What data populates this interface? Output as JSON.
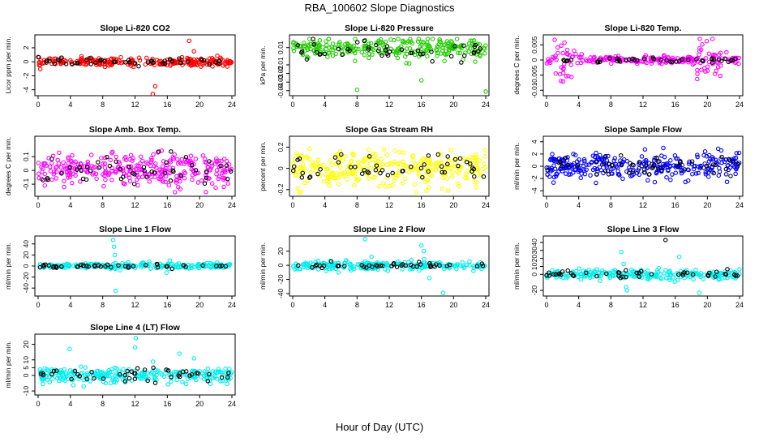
{
  "figure": {
    "title": "RBA_100602  Slope Diagnostics",
    "xlabel": "Hour of Day (UTC)"
  },
  "colors": {
    "red": "#ff0000",
    "green": "#22cc00",
    "magenta": "#ff00ff",
    "yellow": "#ffff00",
    "blue": "#0000ff",
    "cyan": "#00eeee",
    "overlay": "#000000"
  },
  "chart_data": [
    {
      "type": "scatter",
      "title": "Slope Li-820 CO2",
      "ylabel": "Licor ppm per min.",
      "color": "red",
      "xlim": [
        0,
        24
      ],
      "ylim": [
        -4.5,
        3.5
      ],
      "xticks": [
        0,
        4,
        8,
        12,
        16,
        20,
        24
      ],
      "yticks": [
        -4,
        -2,
        0,
        2
      ],
      "grid": false,
      "series": [
        {
          "noise": 0.3,
          "n": 240,
          "outliers": [
            [
              14.5,
              -3.5
            ],
            [
              14.2,
              -4.6
            ],
            [
              18.7,
              3.0
            ],
            [
              19.3,
              1.5
            ]
          ]
        },
        {
          "noise": 0.25,
          "n": 45
        }
      ]
    },
    {
      "type": "scatter",
      "title": "Slope Li-820 Pressure",
      "ylabel": "kPa per min.",
      "color": "green",
      "xlim": [
        0,
        24
      ],
      "ylim": [
        -0.043,
        0.022
      ],
      "xticks": [
        0,
        4,
        8,
        12,
        16,
        20,
        24
      ],
      "yticks": [
        -0.04,
        -0.03,
        -0.02,
        -0.01,
        0.01
      ],
      "grid": false,
      "series": [
        {
          "noise": 0.006,
          "n": 260,
          "center": 0.009,
          "outliers": [
            [
              8.0,
              -0.039
            ],
            [
              16.0,
              -0.028
            ],
            [
              24.0,
              -0.041
            ]
          ]
        },
        {
          "noise": 0.005,
          "n": 45,
          "center": 0.006
        }
      ]
    },
    {
      "type": "scatter",
      "title": "Slope Li-820 Temp.",
      "ylabel": "degrees C per min.",
      "color": "magenta",
      "xlim": [
        0,
        24
      ],
      "ylim": [
        -0.011,
        0.0075
      ],
      "xticks": [
        0,
        4,
        8,
        12,
        16,
        20,
        24
      ],
      "yticks": [
        -0.01,
        -0.005,
        0.0,
        0.005
      ],
      "grid": false,
      "series": [
        {
          "noise": 0.0006,
          "n": 240,
          "burst": [
            [
              0.5,
              4.0,
              0.004
            ],
            [
              18.5,
              22.5,
              0.003
            ]
          ]
        },
        {
          "noise": 0.0005,
          "n": 45
        }
      ]
    },
    {
      "type": "scatter",
      "title": "Slope Amb. Box Temp.",
      "ylabel": "degrees C per min.",
      "color": "magenta",
      "xlim": [
        0,
        24
      ],
      "ylim": [
        -0.17,
        0.23
      ],
      "xticks": [
        0,
        4,
        8,
        12,
        16,
        20,
        24
      ],
      "yticks": [
        -0.1,
        0.0,
        0.1
      ],
      "grid": false,
      "series": [
        {
          "noise": 0.06,
          "n": 300
        },
        {
          "noise": 0.06,
          "n": 50
        }
      ]
    },
    {
      "type": "scatter",
      "title": "Slope Gas Stream RH",
      "ylabel": "percent per min.",
      "color": "yellow",
      "xlim": [
        0,
        24
      ],
      "ylim": [
        -0.24,
        0.28
      ],
      "xticks": [
        0,
        4,
        8,
        12,
        16,
        20,
        24
      ],
      "yticks": [
        -0.2,
        0.0,
        0.2
      ],
      "grid": false,
      "series": [
        {
          "noise": 0.08,
          "n": 300
        },
        {
          "noise": 0.07,
          "n": 50
        }
      ]
    },
    {
      "type": "scatter",
      "title": "Slope Sample Flow",
      "ylabel": "ml/min per min.",
      "color": "blue",
      "xlim": [
        0,
        24
      ],
      "ylim": [
        -4.5,
        4.5
      ],
      "xticks": [
        0,
        4,
        8,
        12,
        16,
        20,
        24
      ],
      "yticks": [
        -4,
        -2,
        0,
        2,
        4
      ],
      "grid": false,
      "series": [
        {
          "noise": 1.1,
          "n": 300
        },
        {
          "noise": 0.9,
          "n": 50
        }
      ]
    },
    {
      "type": "scatter",
      "title": "Slope Line 1 Flow",
      "ylabel": "ml/min per min.",
      "color": "cyan",
      "xlim": [
        0,
        24
      ],
      "ylim": [
        -50,
        50
      ],
      "xticks": [
        0,
        4,
        8,
        12,
        16,
        20,
        24
      ],
      "yticks": [
        -40,
        -20,
        0,
        20,
        40
      ],
      "grid": false,
      "series": [
        {
          "noise": 2.5,
          "n": 240,
          "outliers": [
            [
              9.3,
              47
            ],
            [
              9.4,
              35
            ],
            [
              9.5,
              20
            ],
            [
              9.6,
              -45
            ],
            [
              15.9,
              -12
            ],
            [
              16.3,
              10
            ]
          ]
        },
        {
          "noise": 1.5,
          "n": 45
        }
      ]
    },
    {
      "type": "scatter",
      "title": "Slope Line 2 Flow",
      "ylabel": "ml/min per min.",
      "color": "cyan",
      "xlim": [
        0,
        24
      ],
      "ylim": [
        -40,
        38
      ],
      "xticks": [
        0,
        4,
        8,
        12,
        16,
        20,
        24
      ],
      "yticks": [
        -40,
        -20,
        0,
        20
      ],
      "grid": false,
      "series": [
        {
          "noise": 3.0,
          "n": 240,
          "outliers": [
            [
              9.0,
              37
            ],
            [
              9.8,
              12
            ],
            [
              16.0,
              28
            ],
            [
              16.3,
              20
            ],
            [
              18.7,
              -39
            ],
            [
              17.0,
              -18
            ]
          ]
        },
        {
          "noise": 2.0,
          "n": 45
        }
      ]
    },
    {
      "type": "scatter",
      "title": "Slope Line 3 Flow",
      "ylabel": "ml/min per min.",
      "color": "cyan",
      "xlim": [
        0,
        24
      ],
      "ylim": [
        -24,
        45
      ],
      "xticks": [
        0,
        4,
        8,
        12,
        16,
        20,
        24
      ],
      "yticks": [
        -20,
        0,
        10,
        20,
        30,
        40
      ],
      "grid": false,
      "series": [
        {
          "noise": 3.0,
          "n": 240,
          "outliers": [
            [
              9.3,
              28
            ],
            [
              9.6,
              13
            ],
            [
              9.9,
              -16
            ],
            [
              10.0,
              -20
            ],
            [
              16.5,
              22
            ],
            [
              19.0,
              -23
            ]
          ]
        },
        {
          "noise": 2.5,
          "n": 45,
          "outliers": [
            [
              14.8,
              43
            ]
          ]
        }
      ]
    },
    {
      "type": "scatter",
      "title": "Slope Line 4 (LT) Flow",
      "ylabel": "ml/min per min.",
      "color": "cyan",
      "xlim": [
        0,
        24
      ],
      "ylim": [
        -11,
        25
      ],
      "xticks": [
        0,
        4,
        8,
        12,
        16,
        20,
        24
      ],
      "yticks": [
        -10,
        0,
        5,
        10,
        20
      ],
      "grid": false,
      "series": [
        {
          "noise": 2.5,
          "n": 260,
          "outliers": [
            [
              12.1,
              24
            ],
            [
              12.0,
              18
            ],
            [
              3.9,
              17
            ],
            [
              17.5,
              14
            ],
            [
              19.3,
              11
            ]
          ]
        },
        {
          "noise": 2.0,
          "n": 45
        }
      ]
    }
  ]
}
